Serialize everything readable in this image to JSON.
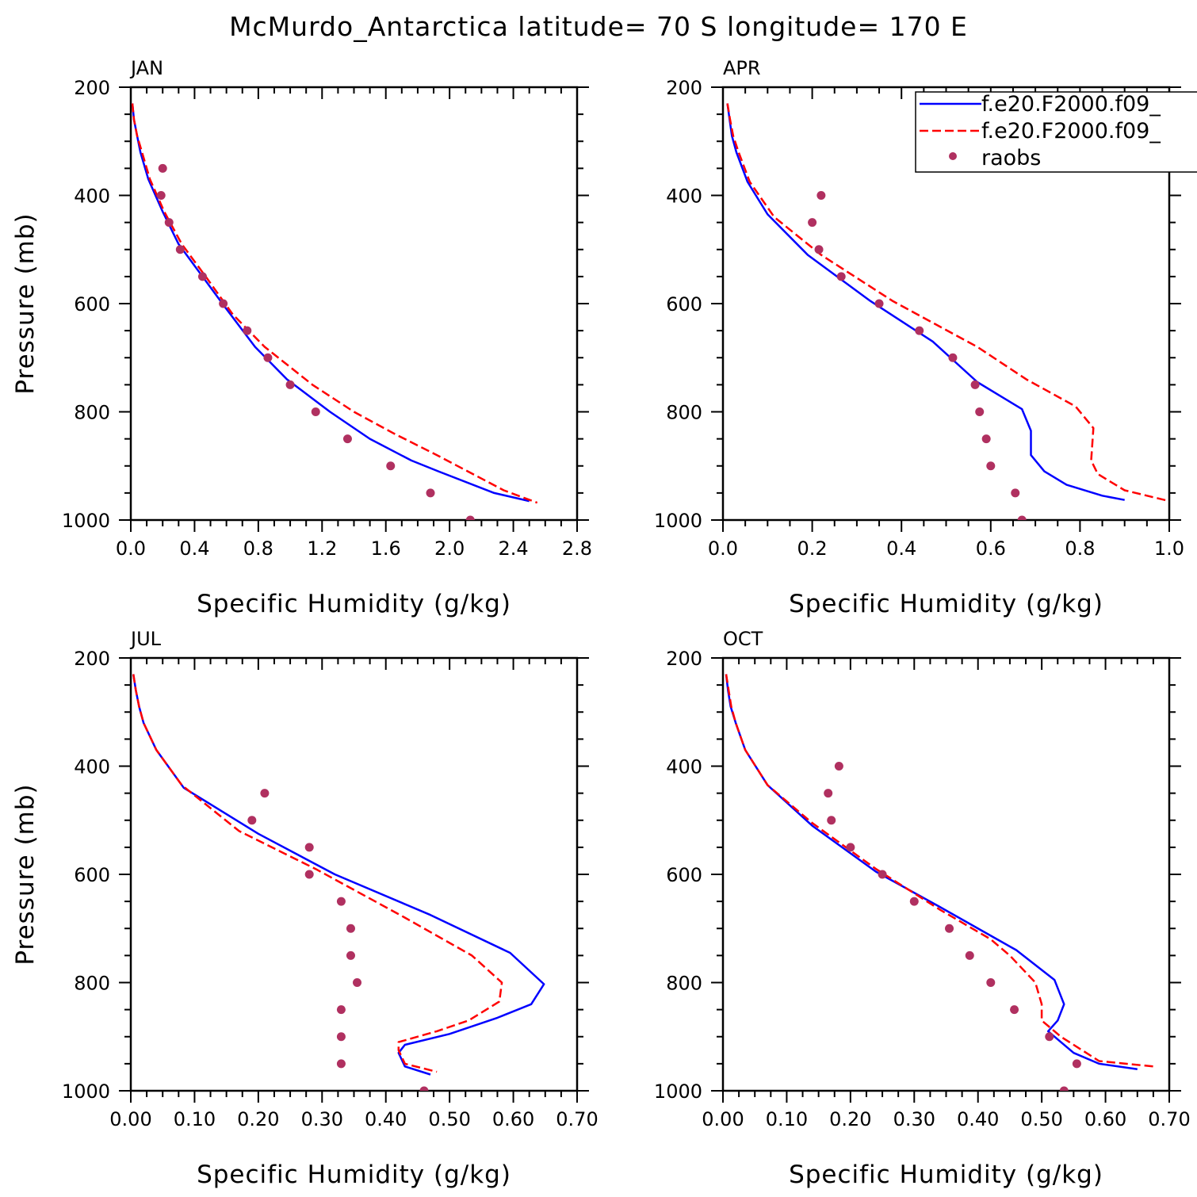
{
  "figure": {
    "title": "McMurdo_Antarctica  latitude= 70 S longitude= 170 E"
  },
  "legend": {
    "entries": [
      {
        "label": "f.e20.F2000.f09_",
        "color": "#0000ff",
        "style": "solid"
      },
      {
        "label": "f.e20.F2000.f09_",
        "color": "#ff0000",
        "style": "dashed"
      },
      {
        "label": "raobs",
        "color": "#b03060",
        "style": "dot"
      }
    ],
    "placement": "top-right of APR panel"
  },
  "colors": {
    "model1": "#0000ff",
    "model2": "#ff0000",
    "obs": "#b03060"
  },
  "chart_data": [
    {
      "type": "line",
      "title": "JAN",
      "xlabel": "Specific Humidity (g/kg)",
      "ylabel": "Pressure (mb)",
      "xlim": [
        0,
        2.8
      ],
      "ylim": [
        1000,
        200
      ],
      "xticks": [
        "0.0",
        "0.4",
        "0.8",
        "1.2",
        "1.6",
        "2.0",
        "2.4",
        "2.8"
      ],
      "yticks": [
        "200",
        "400",
        "600",
        "800",
        "1000"
      ],
      "series": [
        {
          "name": "f.e20.F2000.f09_",
          "style": "solid",
          "color": "#0000ff",
          "points": [
            [
              0.01,
              230
            ],
            [
              0.02,
              260
            ],
            [
              0.04,
              290
            ],
            [
              0.06,
              320
            ],
            [
              0.11,
              370
            ],
            [
              0.2,
              430
            ],
            [
              0.3,
              490
            ],
            [
              0.45,
              550
            ],
            [
              0.6,
              610
            ],
            [
              0.78,
              680
            ],
            [
              0.98,
              740
            ],
            [
              1.25,
              800
            ],
            [
              1.5,
              850
            ],
            [
              1.76,
              890
            ],
            [
              1.93,
              910
            ],
            [
              2.28,
              950
            ],
            [
              2.5,
              965
            ]
          ]
        },
        {
          "name": "f.e20.F2000.f09_",
          "style": "dashed",
          "color": "#ff0000",
          "points": [
            [
              0.01,
              230
            ],
            [
              0.02,
              260
            ],
            [
              0.04,
              290
            ],
            [
              0.07,
              320
            ],
            [
              0.12,
              370
            ],
            [
              0.21,
              430
            ],
            [
              0.32,
              490
            ],
            [
              0.47,
              550
            ],
            [
              0.64,
              620
            ],
            [
              0.84,
              680
            ],
            [
              1.14,
              750
            ],
            [
              1.4,
              800
            ],
            [
              1.65,
              840
            ],
            [
              1.92,
              880
            ],
            [
              2.34,
              945
            ],
            [
              2.55,
              968
            ]
          ]
        },
        {
          "name": "raobs",
          "style": "dot",
          "color": "#b03060",
          "points": [
            [
              0.2,
              350
            ],
            [
              0.19,
              400
            ],
            [
              0.24,
              450
            ],
            [
              0.31,
              500
            ],
            [
              0.45,
              550
            ],
            [
              0.58,
              600
            ],
            [
              0.73,
              650
            ],
            [
              0.86,
              700
            ],
            [
              1.0,
              750
            ],
            [
              1.16,
              800
            ],
            [
              1.36,
              850
            ],
            [
              1.63,
              900
            ],
            [
              1.88,
              950
            ],
            [
              2.13,
              1000
            ]
          ]
        }
      ]
    },
    {
      "type": "line",
      "title": "APR",
      "xlabel": "Specific Humidity (g/kg)",
      "ylabel": "",
      "xlim": [
        0,
        1.0
      ],
      "ylim": [
        1000,
        200
      ],
      "xticks": [
        "0.0",
        "0.2",
        "0.4",
        "0.6",
        "0.8",
        "1.0"
      ],
      "yticks": [
        "200",
        "400",
        "600",
        "800",
        "1000"
      ],
      "series": [
        {
          "name": "f.e20.F2000.f09_",
          "style": "solid",
          "color": "#0000ff",
          "points": [
            [
              0.01,
              230
            ],
            [
              0.015,
              260
            ],
            [
              0.02,
              290
            ],
            [
              0.03,
              320
            ],
            [
              0.055,
              375
            ],
            [
              0.1,
              435
            ],
            [
              0.19,
              510
            ],
            [
              0.33,
              595
            ],
            [
              0.47,
              670
            ],
            [
              0.57,
              745
            ],
            [
              0.67,
              795
            ],
            [
              0.69,
              835
            ],
            [
              0.69,
              880
            ],
            [
              0.72,
              910
            ],
            [
              0.77,
              935
            ],
            [
              0.85,
              955
            ],
            [
              0.9,
              963
            ]
          ]
        },
        {
          "name": "f.e20.F2000.f09_",
          "style": "dashed",
          "color": "#ff0000",
          "points": [
            [
              0.01,
              230
            ],
            [
              0.016,
              260
            ],
            [
              0.023,
              290
            ],
            [
              0.035,
              320
            ],
            [
              0.06,
              375
            ],
            [
              0.115,
              440
            ],
            [
              0.22,
              510
            ],
            [
              0.38,
              595
            ],
            [
              0.57,
              680
            ],
            [
              0.68,
              740
            ],
            [
              0.79,
              790
            ],
            [
              0.83,
              830
            ],
            [
              0.825,
              890
            ],
            [
              0.84,
              915
            ],
            [
              0.9,
              945
            ],
            [
              1.0,
              965
            ]
          ]
        },
        {
          "name": "raobs",
          "style": "dot",
          "color": "#b03060",
          "points": [
            [
              0.22,
              400
            ],
            [
              0.2,
              450
            ],
            [
              0.215,
              500
            ],
            [
              0.265,
              550
            ],
            [
              0.35,
              600
            ],
            [
              0.44,
              650
            ],
            [
              0.515,
              700
            ],
            [
              0.565,
              750
            ],
            [
              0.575,
              800
            ],
            [
              0.59,
              850
            ],
            [
              0.6,
              900
            ],
            [
              0.655,
              950
            ],
            [
              0.67,
              1000
            ]
          ]
        }
      ]
    },
    {
      "type": "line",
      "title": "JUL",
      "xlabel": "Specific Humidity (g/kg)",
      "ylabel": "Pressure (mb)",
      "xlim": [
        0,
        0.7
      ],
      "ylim": [
        1000,
        200
      ],
      "xticks": [
        "0.00",
        "0.10",
        "0.20",
        "0.30",
        "0.40",
        "0.50",
        "0.60",
        "0.70"
      ],
      "yticks": [
        "200",
        "400",
        "600",
        "800",
        "1000"
      ],
      "series": [
        {
          "name": "f.e20.F2000.f09_",
          "style": "solid",
          "color": "#0000ff",
          "points": [
            [
              0.004,
              230
            ],
            [
              0.008,
              260
            ],
            [
              0.013,
              290
            ],
            [
              0.02,
              320
            ],
            [
              0.04,
              370
            ],
            [
              0.083,
              440
            ],
            [
              0.2,
              525
            ],
            [
              0.32,
              600
            ],
            [
              0.47,
              675
            ],
            [
              0.595,
              745
            ],
            [
              0.648,
              803
            ],
            [
              0.628,
              840
            ],
            [
              0.575,
              865
            ],
            [
              0.5,
              895
            ],
            [
              0.43,
              915
            ],
            [
              0.42,
              930
            ],
            [
              0.43,
              955
            ],
            [
              0.47,
              970
            ]
          ]
        },
        {
          "name": "f.e20.F2000.f09_",
          "style": "dashed",
          "color": "#ff0000",
          "points": [
            [
              0.004,
              230
            ],
            [
              0.008,
              260
            ],
            [
              0.013,
              290
            ],
            [
              0.02,
              320
            ],
            [
              0.04,
              370
            ],
            [
              0.08,
              435
            ],
            [
              0.17,
              520
            ],
            [
              0.29,
              590
            ],
            [
              0.43,
              680
            ],
            [
              0.535,
              750
            ],
            [
              0.582,
              800
            ],
            [
              0.578,
              835
            ],
            [
              0.53,
              870
            ],
            [
              0.48,
              890
            ],
            [
              0.42,
              910
            ],
            [
              0.42,
              925
            ],
            [
              0.43,
              950
            ],
            [
              0.48,
              965
            ]
          ]
        },
        {
          "name": "raobs",
          "style": "dot",
          "color": "#b03060",
          "points": [
            [
              0.21,
              450
            ],
            [
              0.19,
              500
            ],
            [
              0.28,
              550
            ],
            [
              0.28,
              600
            ],
            [
              0.33,
              650
            ],
            [
              0.345,
              700
            ],
            [
              0.345,
              750
            ],
            [
              0.355,
              800
            ],
            [
              0.33,
              850
            ],
            [
              0.33,
              900
            ],
            [
              0.33,
              950
            ],
            [
              0.46,
              1000
            ]
          ]
        }
      ]
    },
    {
      "type": "line",
      "title": "OCT",
      "xlabel": "Specific Humidity (g/kg)",
      "ylabel": "",
      "xlim": [
        0,
        0.7
      ],
      "ylim": [
        1000,
        200
      ],
      "xticks": [
        "0.00",
        "0.10",
        "0.20",
        "0.30",
        "0.40",
        "0.50",
        "0.60",
        "0.70"
      ],
      "yticks": [
        "200",
        "400",
        "600",
        "800",
        "1000"
      ],
      "series": [
        {
          "name": "f.e20.F2000.f09_",
          "style": "solid",
          "color": "#0000ff",
          "points": [
            [
              0.005,
              230
            ],
            [
              0.008,
              260
            ],
            [
              0.012,
              290
            ],
            [
              0.02,
              320
            ],
            [
              0.035,
              370
            ],
            [
              0.07,
              435
            ],
            [
              0.14,
              510
            ],
            [
              0.24,
              595
            ],
            [
              0.34,
              660
            ],
            [
              0.43,
              720
            ],
            [
              0.46,
              740
            ],
            [
              0.52,
              795
            ],
            [
              0.535,
              840
            ],
            [
              0.525,
              870
            ],
            [
              0.51,
              890
            ],
            [
              0.53,
              910
            ],
            [
              0.55,
              930
            ],
            [
              0.59,
              950
            ],
            [
              0.65,
              960
            ]
          ]
        },
        {
          "name": "f.e20.F2000.f09_",
          "style": "dashed",
          "color": "#ff0000",
          "points": [
            [
              0.005,
              230
            ],
            [
              0.009,
              260
            ],
            [
              0.013,
              290
            ],
            [
              0.02,
              320
            ],
            [
              0.035,
              370
            ],
            [
              0.07,
              435
            ],
            [
              0.14,
              505
            ],
            [
              0.24,
              590
            ],
            [
              0.34,
              665
            ],
            [
              0.42,
              720
            ],
            [
              0.45,
              750
            ],
            [
              0.49,
              800
            ],
            [
              0.5,
              840
            ],
            [
              0.5,
              870
            ],
            [
              0.53,
              900
            ],
            [
              0.57,
              930
            ],
            [
              0.59,
              945
            ],
            [
              0.675,
              955
            ]
          ]
        },
        {
          "name": "raobs",
          "style": "dot",
          "color": "#b03060",
          "points": [
            [
              0.182,
              400
            ],
            [
              0.165,
              450
            ],
            [
              0.17,
              500
            ],
            [
              0.2,
              550
            ],
            [
              0.25,
              600
            ],
            [
              0.3,
              650
            ],
            [
              0.355,
              700
            ],
            [
              0.387,
              750
            ],
            [
              0.42,
              800
            ],
            [
              0.457,
              850
            ],
            [
              0.512,
              900
            ],
            [
              0.555,
              950
            ],
            [
              0.535,
              1000
            ]
          ]
        }
      ]
    }
  ]
}
